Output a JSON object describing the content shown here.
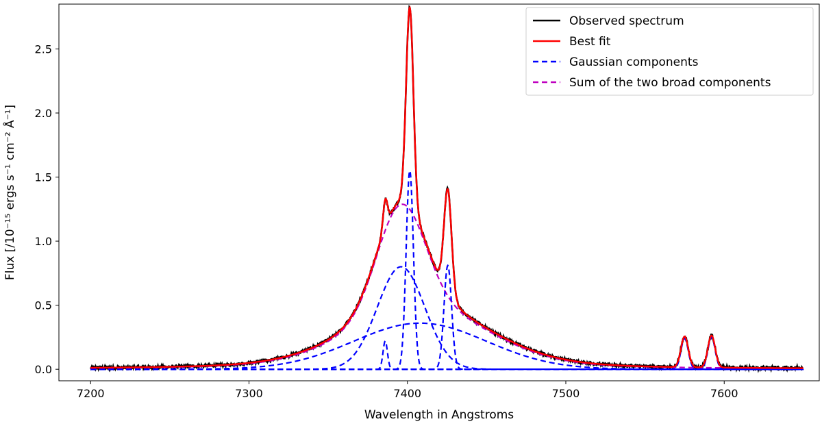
{
  "chart_data": {
    "type": "line",
    "title": "",
    "xlabel": "Wavelength in Angstroms",
    "ylabel": "Flux [/10⁻¹⁵ ergs s⁻¹ cm⁻² Å⁻¹]",
    "xlim": [
      7180,
      7660
    ],
    "ylim": [
      -0.09,
      2.85
    ],
    "x_range": [
      7200,
      7650
    ],
    "xticks": [
      7200,
      7300,
      7400,
      7500,
      7600
    ],
    "xtick_labels": [
      "7200",
      "7300",
      "7400",
      "7500",
      "7600"
    ],
    "yticks": [
      0.0,
      0.5,
      1.0,
      1.5,
      2.0,
      2.5
    ],
    "ytick_labels": [
      "0.0",
      "0.5",
      "1.0",
      "1.5",
      "2.0",
      "2.5"
    ],
    "legend_position": "top-right",
    "legend": [
      {
        "label": "Observed spectrum",
        "color": "#000000",
        "dash": "solid"
      },
      {
        "label": "Best fit",
        "color": "#ff0000",
        "dash": "solid"
      },
      {
        "label": "Gaussian components",
        "color": "#0000ff",
        "dash": "dashed"
      },
      {
        "label": "Sum of the two broad components",
        "color": "#bf00bf",
        "dash": "dashed"
      }
    ],
    "gaussian_components": [
      {
        "center": 7396,
        "amplitude": 0.8,
        "sigma": 15
      },
      {
        "center": 7408,
        "amplitude": 0.36,
        "sigma": 42
      },
      {
        "center": 7401.5,
        "amplitude": 1.55,
        "sigma": 2.3
      },
      {
        "center": 7386,
        "amplitude": 0.22,
        "sigma": 1.4
      },
      {
        "center": 7425.5,
        "amplitude": 0.81,
        "sigma": 2.4
      },
      {
        "center": 7575,
        "amplitude": 0.24,
        "sigma": 2.3
      },
      {
        "center": 7592,
        "amplitude": 0.25,
        "sigma": 2.3
      }
    ],
    "broad_sum_components": [
      0,
      1
    ],
    "wing_component": {
      "center": 7405,
      "amplitude": 0.17,
      "gamma": 55
    },
    "colors": {
      "observed": "#000000",
      "fit": "#ff0000",
      "gaussian": "#0000ff",
      "broad_sum": "#bf00bf"
    }
  }
}
